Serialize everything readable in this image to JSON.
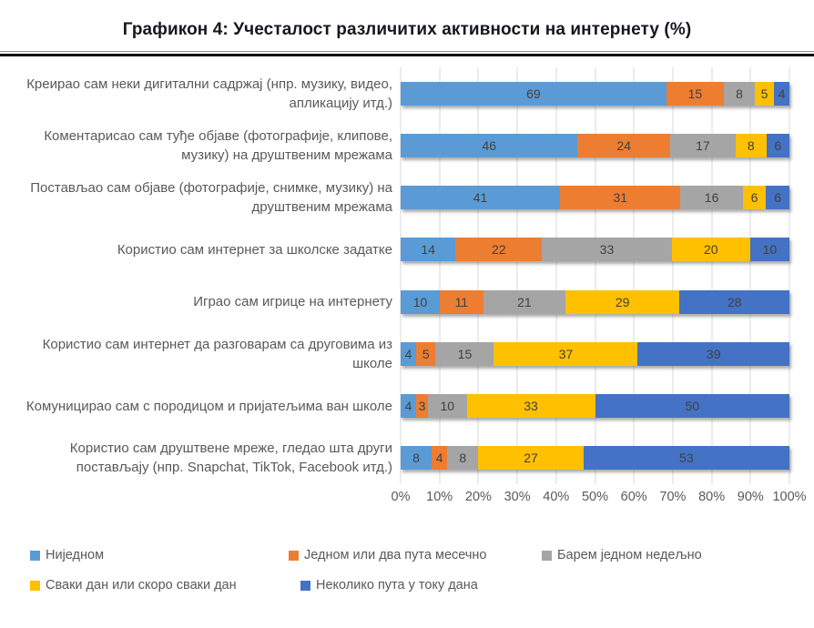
{
  "chart_data": {
    "type": "bar",
    "variant": "stacked-100-horizontal",
    "title": "Графикон 4: Учесталост различитих активности на интернету (%)",
    "categories": [
      "Креирао сам неки дигитални садржај (нпр. музику, видео, апликацију итд.)",
      "Коментарисао сам туђе објаве (фотографије, клипове, музику) на друштвеним мрежама",
      "Постављао сам објаве (фотографије, снимке, музику) на друштвеним мрежама",
      "Користио сам интернет за школске задатке",
      "Играо сам игрице на интернету",
      "Користио сам интернет да разговарам са друговима из школе",
      "Комуницирао сам с породицом и пријатељима ван школе",
      "Користио сам друштвене мреже, гледао шта други постављају (нпр. Snapchat, TikTok, Facebook итд.)"
    ],
    "series": [
      {
        "name": "Ниједном",
        "color": "#5B9BD5",
        "values": [
          69,
          46,
          41,
          14,
          10,
          4,
          4,
          8
        ]
      },
      {
        "name": "Једном или два пута месечно",
        "color": "#ED7D31",
        "values": [
          15,
          24,
          31,
          22,
          11,
          5,
          3,
          4
        ]
      },
      {
        "name": "Барем једном недељно",
        "color": "#A5A5A5",
        "values": [
          8,
          17,
          16,
          33,
          21,
          15,
          10,
          8
        ]
      },
      {
        "name": "Сваки дан или скоро сваки дан",
        "color": "#FFC000",
        "values": [
          5,
          8,
          6,
          20,
          29,
          37,
          33,
          27
        ]
      },
      {
        "name": "Неколико пута у току дана",
        "color": "#4472C4",
        "values": [
          4,
          6,
          6,
          10,
          28,
          39,
          50,
          53
        ]
      }
    ],
    "x_ticks": [
      "0%",
      "10%",
      "20%",
      "30%",
      "40%",
      "50%",
      "60%",
      "70%",
      "80%",
      "90%",
      "100%"
    ],
    "xlim": [
      0,
      100
    ],
    "grid": "vertical",
    "gridline_color": "#D9D9D9",
    "value_label_color": "#404040",
    "axis_text_color": "#595959",
    "legend_position": "bottom"
  }
}
